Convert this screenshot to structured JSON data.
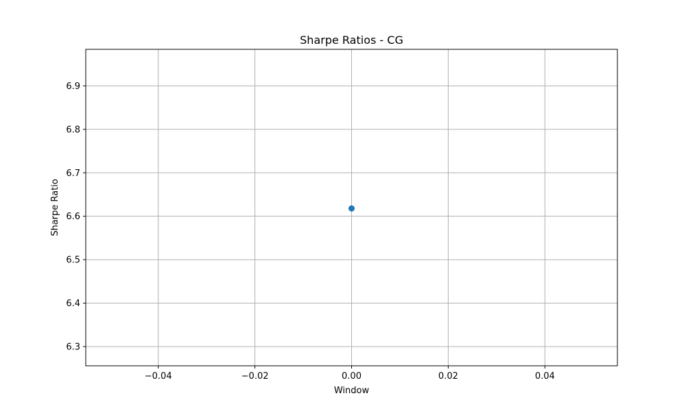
{
  "chart_data": {
    "type": "scatter",
    "title": "Sharpe Ratios - CG",
    "xlabel": "Window",
    "ylabel": "Sharpe Ratio",
    "xlim": [
      -0.055,
      0.055
    ],
    "ylim": [
      6.2558,
      6.9842
    ],
    "xticks": [
      -0.04,
      -0.02,
      0.0,
      0.02,
      0.04
    ],
    "xtick_labels": [
      "−0.04",
      "−0.02",
      "0.00",
      "0.02",
      "0.04"
    ],
    "yticks": [
      6.3,
      6.4,
      6.5,
      6.6,
      6.7,
      6.8,
      6.9
    ],
    "ytick_labels": [
      "6.3",
      "6.4",
      "6.5",
      "6.6",
      "6.7",
      "6.8",
      "6.9"
    ],
    "grid": true,
    "series": [
      {
        "x": [
          0.0
        ],
        "y": [
          6.618
        ],
        "color": "#1f77b4"
      }
    ]
  }
}
